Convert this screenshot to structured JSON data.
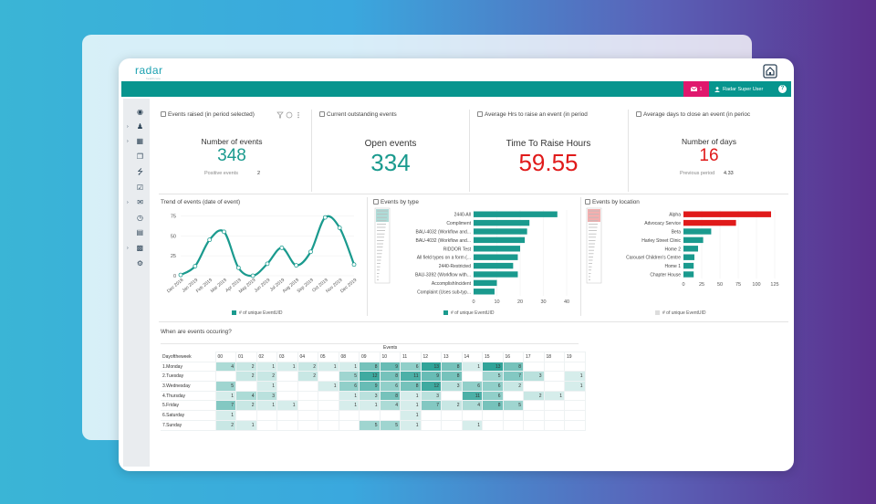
{
  "brand": {
    "name": "radar",
    "tagline": "healthcare"
  },
  "topbar": {
    "mail_count": "1",
    "user_name": "Radar Super User",
    "help_label": "?"
  },
  "kpis": [
    {
      "title": "Events raised (in period selected)",
      "label": "Number of events",
      "value": "348",
      "sub_label": "Positive events",
      "sub_value": "2",
      "color": "#1a9a8e"
    },
    {
      "title": "Current outstanding events",
      "label": "Open events",
      "value": "334",
      "color": "#1a9a8e"
    },
    {
      "title": "Average Hrs to raise an event (in period",
      "label": "Time To Raise Hours",
      "value": "59.55",
      "color": "#e01a1a"
    },
    {
      "title": "Average days to close an event (in perioc",
      "label": "Number of days",
      "value": "16",
      "sub_label": "Previous period",
      "sub_value": "4.33",
      "color": "#e01a1a"
    }
  ],
  "panels": {
    "trend_title": "Trend of events (date of event)",
    "type_title": "Events by type",
    "location_title": "Events by location",
    "heatmap_title": "When are events occuring?"
  },
  "chart_data": [
    {
      "type": "line",
      "title": "Trend of events (date of event)",
      "x": [
        "Dec 2018",
        "Jan 2019",
        "Feb 2019",
        "Mar 2019",
        "Apr 2019",
        "May 2019",
        "Jun 2019",
        "Jul 2019",
        "Aug 2019",
        "Sep 2019",
        "Oct 2019",
        "Nov 2019",
        "Dec 2019"
      ],
      "y": [
        1,
        12,
        45,
        55,
        10,
        0,
        15,
        35,
        13,
        30,
        73,
        60,
        14
      ],
      "yticks": [
        0,
        25,
        50,
        75
      ],
      "ylim": [
        0,
        80
      ],
      "legend": "# of unique EventUID",
      "color": "#1a9a8e"
    },
    {
      "type": "bar",
      "title": "Events by type",
      "categories": [
        "2440-All",
        "Compliment",
        "BAU-4032 (Workflow and...",
        "BAU-4032 (Workflow and...",
        "RIDDOR Test",
        "All field types on a form (...",
        "2440-Restricted",
        "BAU-3392 (Workflow with...",
        "AccomplishIncident",
        "Complaint (Uses sub-typ..."
      ],
      "values": [
        36,
        24,
        23,
        22,
        20,
        19,
        17,
        19,
        10,
        9
      ],
      "xticks": [
        0,
        10,
        20,
        30,
        40
      ],
      "xlim": [
        0,
        40
      ],
      "legend": "# of unique EventUID",
      "color": "#1a9a8e"
    },
    {
      "type": "bar",
      "title": "Events by location",
      "categories": [
        "Alpha",
        "Advocacy Service",
        "Beta",
        "Harley Street Clinic",
        "Home 2",
        "Carousel Children's Centre",
        "Home 1",
        "Chapter House"
      ],
      "values": [
        120,
        72,
        38,
        27,
        20,
        15,
        14,
        14
      ],
      "colors": [
        "#e01a1a",
        "#e01a1a",
        "#1a9a8e",
        "#1a9a8e",
        "#1a9a8e",
        "#1a9a8e",
        "#1a9a8e",
        "#1a9a8e"
      ],
      "xticks": [
        0,
        25,
        50,
        75,
        100,
        125
      ],
      "xlim": [
        0,
        125
      ],
      "legend": "# of unique EventUID"
    },
    {
      "type": "heatmap",
      "title": "When are events occuring?",
      "header": "Events",
      "row_header": "Dayoftheweek",
      "columns": [
        "00",
        "01",
        "02",
        "03",
        "04",
        "05",
        "08",
        "09",
        "10",
        "11",
        "12",
        "13",
        "14",
        "15",
        "16",
        "17",
        "18",
        "19"
      ],
      "rows": [
        {
          "label": "1.Monday",
          "values": [
            4,
            2,
            1,
            1,
            2,
            1,
            1,
            8,
            9,
            6,
            13,
            8,
            1,
            13,
            8,
            null,
            null,
            null
          ]
        },
        {
          "label": "2.Tuesday",
          "values": [
            null,
            2,
            2,
            null,
            2,
            null,
            5,
            12,
            8,
            11,
            9,
            8,
            null,
            5,
            7,
            3,
            null,
            1
          ]
        },
        {
          "label": "3.Wednesday",
          "values": [
            5,
            null,
            1,
            null,
            null,
            1,
            6,
            9,
            6,
            8,
            12,
            3,
            6,
            6,
            2,
            null,
            null,
            1
          ]
        },
        {
          "label": "4.Thursday",
          "values": [
            1,
            4,
            3,
            null,
            null,
            null,
            1,
            3,
            8,
            1,
            3,
            null,
            11,
            6,
            null,
            2,
            1,
            null
          ]
        },
        {
          "label": "5.Friday",
          "values": [
            7,
            2,
            1,
            1,
            null,
            null,
            1,
            1,
            4,
            1,
            7,
            2,
            4,
            8,
            5,
            null,
            null,
            null
          ]
        },
        {
          "label": "6.Saturday",
          "values": [
            1,
            null,
            null,
            null,
            null,
            null,
            null,
            null,
            null,
            1,
            null,
            null,
            null,
            null,
            null,
            null,
            null,
            null
          ]
        },
        {
          "label": "7.Sunday",
          "values": [
            2,
            1,
            null,
            null,
            null,
            null,
            null,
            5,
            5,
            1,
            null,
            null,
            1,
            null,
            null,
            null,
            null,
            null
          ]
        }
      ],
      "max": 13,
      "color": "#1a9a8e"
    }
  ]
}
